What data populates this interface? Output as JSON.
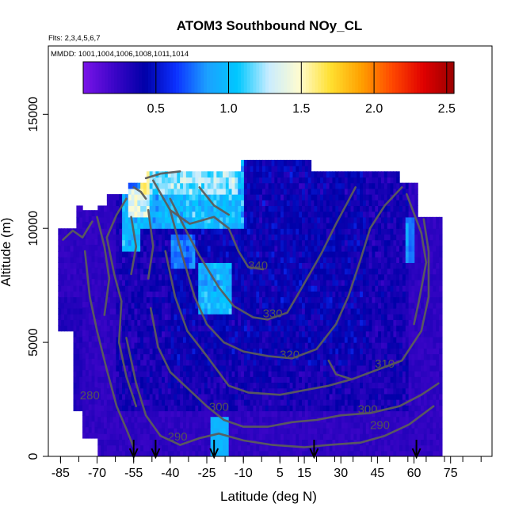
{
  "chart_data": {
    "type": "heatmap",
    "title": "ATOM3 Southbound NOy_CL",
    "flights_text": "Flts: 2,3,4,5,6,7",
    "dates_text": "MMDD: 1001,1004,1006,1008,1011,1014",
    "xlabel": "Latitude (deg N)",
    "ylabel": "Altitude (m)",
    "xlim": [
      -90,
      92
    ],
    "ylim": [
      0,
      18000
    ],
    "x_ticks": [
      -85,
      -70,
      -55,
      -40,
      -25,
      -10,
      5,
      15,
      30,
      45,
      60,
      75
    ],
    "y_ticks": [
      0,
      5000,
      10000,
      15000
    ],
    "colorbar": {
      "range": [
        0,
        2.55
      ],
      "ticks": [
        0.5,
        1.0,
        1.5,
        2.0,
        2.5
      ],
      "tick_labels": [
        "0.5",
        "1.0",
        "1.5",
        "2.0",
        "2.5"
      ],
      "colors": [
        "#7a14e8",
        "#3c05c8",
        "#0000a8",
        "#0c30ff",
        "#1ca0ff",
        "#00c8ff",
        "#c8ecff",
        "#fffcd0",
        "#ffe030",
        "#ffa000",
        "#ff4800",
        "#e00000",
        "#9a0000"
      ]
    },
    "contour_labels": [
      {
        "text": "340",
        "lat": -4,
        "alt": 8200
      },
      {
        "text": "330",
        "lat": 2,
        "alt": 6100
      },
      {
        "text": "320",
        "lat": 9,
        "alt": 4300
      },
      {
        "text": "310",
        "lat": 48,
        "alt": 3900
      },
      {
        "text": "300",
        "lat": -20,
        "alt": 2000
      },
      {
        "text": "300",
        "lat": 41,
        "alt": 1900
      },
      {
        "text": "290",
        "lat": -37,
        "alt": 700
      },
      {
        "text": "290",
        "lat": 46,
        "alt": 1200
      },
      {
        "text": "280",
        "lat": -73,
        "alt": 2500
      }
    ],
    "contour_lines": [
      {
        "level": 340,
        "points": [
          [
            -47,
            12100
          ],
          [
            -40,
            10800
          ],
          [
            -32,
            10200
          ],
          [
            -22,
            10500
          ],
          [
            -16,
            10000
          ],
          [
            -12,
            9000
          ],
          [
            -8,
            8300
          ],
          [
            -2,
            8200
          ]
        ]
      },
      {
        "level": 330,
        "points": [
          [
            -40,
            11300
          ],
          [
            -33,
            9800
          ],
          [
            -28,
            8800
          ],
          [
            -24,
            8100
          ],
          [
            -20,
            7400
          ],
          [
            -14,
            6600
          ],
          [
            -6,
            6100
          ],
          [
            0,
            6000
          ],
          [
            8,
            6300
          ],
          [
            14,
            7400
          ],
          [
            22,
            8900
          ],
          [
            28,
            10200
          ],
          [
            33,
            11200
          ],
          [
            36,
            11800
          ]
        ]
      },
      {
        "level": 320,
        "points": [
          [
            -40,
            10800
          ],
          [
            -35,
            8800
          ],
          [
            -30,
            7000
          ],
          [
            -25,
            5800
          ],
          [
            -18,
            5000
          ],
          [
            -10,
            4600
          ],
          [
            0,
            4400
          ],
          [
            10,
            4300
          ],
          [
            20,
            4700
          ],
          [
            28,
            5800
          ],
          [
            33,
            7000
          ],
          [
            38,
            8600
          ],
          [
            42,
            10000
          ],
          [
            48,
            11000
          ],
          [
            55,
            11800
          ]
        ]
      },
      {
        "level": 310,
        "points": [
          [
            -42,
            9000
          ],
          [
            -38,
            7000
          ],
          [
            -33,
            5500
          ],
          [
            -25,
            4400
          ],
          [
            -16,
            3100
          ],
          [
            -8,
            2800
          ],
          [
            5,
            2700
          ],
          [
            15,
            2900
          ],
          [
            25,
            3100
          ],
          [
            35,
            3400
          ],
          [
            45,
            3800
          ],
          [
            55,
            4200
          ],
          [
            63,
            5500
          ],
          [
            66,
            7000
          ],
          [
            66,
            9000
          ],
          [
            64,
            10400
          ]
        ]
      },
      {
        "level": 300,
        "points": [
          [
            -48,
            6500
          ],
          [
            -45,
            4800
          ],
          [
            -40,
            3700
          ],
          [
            -33,
            3000
          ],
          [
            -25,
            2200
          ],
          [
            -18,
            1600
          ],
          [
            -10,
            1300
          ],
          [
            0,
            1300
          ],
          [
            10,
            1500
          ],
          [
            20,
            1600
          ],
          [
            30,
            1800
          ],
          [
            42,
            1900
          ],
          [
            54,
            2200
          ],
          [
            63,
            2700
          ],
          [
            70,
            3200
          ]
        ]
      },
      {
        "level": 290,
        "points": [
          [
            -58,
            5200
          ],
          [
            -54,
            3200
          ],
          [
            -50,
            1800
          ],
          [
            -44,
            900
          ],
          [
            -36,
            500
          ],
          [
            -28,
            800
          ],
          [
            -20,
            1000
          ],
          [
            -10,
            700
          ],
          [
            2,
            500
          ],
          [
            15,
            400
          ],
          [
            25,
            500
          ],
          [
            38,
            600
          ],
          [
            48,
            900
          ],
          [
            58,
            1400
          ],
          [
            68,
            2200
          ]
        ]
      },
      {
        "level": 280,
        "points": [
          [
            -75,
            9000
          ],
          [
            -73,
            7000
          ],
          [
            -70,
            5500
          ],
          [
            -66,
            3800
          ],
          [
            -62,
            2200
          ],
          [
            -58,
            1200
          ],
          [
            -55,
            400
          ]
        ]
      },
      {
        "level": 0,
        "points": [
          [
            -58,
            11300
          ],
          [
            -62,
            10600
          ],
          [
            -66,
            9600
          ],
          [
            -63,
            8000
          ],
          [
            -60,
            6800
          ],
          [
            -61,
            5000
          ],
          [
            -58,
            3500
          ],
          [
            -54,
            2200
          ]
        ]
      },
      {
        "level": 0,
        "points": [
          [
            -70,
            10500
          ],
          [
            -67,
            9200
          ],
          [
            -65,
            7800
          ],
          [
            -67,
            6200
          ]
        ]
      },
      {
        "level": 0,
        "points": [
          [
            -56,
            10500
          ],
          [
            -54,
            9200
          ],
          [
            -56,
            8000
          ]
        ]
      },
      {
        "level": 0,
        "points": [
          [
            -49,
            10800
          ],
          [
            -47,
            9200
          ],
          [
            -49,
            7800
          ]
        ]
      },
      {
        "level": 0,
        "points": [
          [
            -84,
            9500
          ],
          [
            -80,
            9900
          ],
          [
            -76,
            9600
          ],
          [
            -72,
            10300
          ]
        ]
      },
      {
        "level": 0,
        "points": [
          [
            -55,
            11800
          ],
          [
            -52,
            11600
          ],
          [
            -50,
            11300
          ]
        ]
      },
      {
        "level": 0,
        "points": [
          [
            -50,
            12200
          ],
          [
            -44,
            12400
          ],
          [
            -36,
            12500
          ]
        ]
      },
      {
        "level": 0,
        "points": [
          [
            -28,
            11800
          ],
          [
            -22,
            11000
          ],
          [
            -16,
            10600
          ]
        ]
      },
      {
        "level": 0,
        "points": [
          [
            57,
            11500
          ],
          [
            63,
            9800
          ],
          [
            65,
            8500
          ],
          [
            62,
            6800
          ],
          [
            60,
            5800
          ]
        ]
      },
      {
        "level": 0,
        "points": [
          [
            25,
            4200
          ],
          [
            28,
            3600
          ],
          [
            34,
            3400
          ]
        ]
      }
    ],
    "flight_markers_lat": [
      -55,
      -46,
      -22,
      19,
      61
    ],
    "grid": false,
    "legend": "none"
  }
}
